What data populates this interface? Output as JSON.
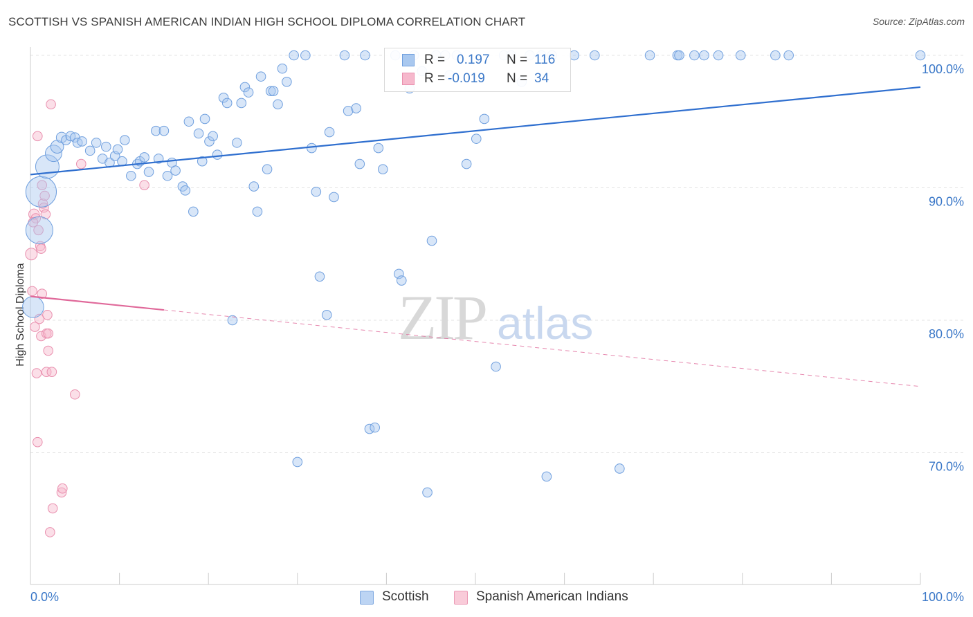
{
  "header": {
    "title": "SCOTTISH VS SPANISH AMERICAN INDIAN HIGH SCHOOL DIPLOMA CORRELATION CHART",
    "source": "Source: ZipAtlas.com"
  },
  "watermark": {
    "zip": "ZIP",
    "atlas": "atlas"
  },
  "legend": {
    "rows": [
      {
        "r_label": "R =",
        "r_value": "0.197",
        "n_label": "N =",
        "n_value": "116"
      },
      {
        "r_label": "R =",
        "r_value": "-0.019",
        "n_label": "N =",
        "n_value": "34"
      }
    ]
  },
  "bottom_legend": {
    "series1": "Scottish",
    "series2": "Spanish American Indians"
  },
  "colors": {
    "scottish_fill": "#a9c8ef",
    "scottish_stroke": "#6f9fde",
    "scottish_line": "#2f6fcf",
    "spanish_fill": "#f6b8cc",
    "spanish_stroke": "#e98fae",
    "spanish_line": "#e0699a",
    "tick_label": "#3b78c8",
    "grid": "#e3e3e3"
  },
  "chart_data": {
    "type": "scatter",
    "title": "SCOTTISH VS SPANISH AMERICAN INDIAN HIGH SCHOOL DIPLOMA CORRELATION CHART",
    "xlabel": "",
    "ylabel": "High School Diploma",
    "xlim": [
      0,
      100
    ],
    "ylim": [
      62,
      101
    ],
    "x_tick_labels": [
      "0.0%",
      "100.0%"
    ],
    "y_ticks": [
      70,
      80,
      90,
      100
    ],
    "y_tick_labels": [
      "70.0%",
      "80.0%",
      "90.0%",
      "100.0%"
    ],
    "grid": true,
    "legend_placement": "top-center",
    "series": [
      {
        "name": "Scottish",
        "R": 0.197,
        "N": 116,
        "trend": {
          "x": [
            0,
            100
          ],
          "y": [
            91.0,
            97.6
          ],
          "dashed": false
        },
        "points": [
          [
            0.3,
            81.0,
            1.8
          ],
          [
            1.0,
            86.8,
            2.3
          ],
          [
            1.2,
            89.7,
            2.6
          ],
          [
            1.9,
            91.6,
            2.0
          ],
          [
            2.6,
            92.6,
            1.4
          ],
          [
            3.0,
            93.1,
            1.1
          ],
          [
            3.5,
            93.8,
            0.9
          ],
          [
            4.0,
            93.6,
            0.8
          ],
          [
            4.5,
            93.9,
            0.8
          ],
          [
            5.0,
            93.8,
            0.8
          ],
          [
            5.3,
            93.4,
            0.8
          ],
          [
            5.8,
            93.5,
            0.8
          ],
          [
            6.7,
            92.8,
            0.8
          ],
          [
            7.4,
            93.4,
            0.8
          ],
          [
            8.1,
            92.2,
            0.8
          ],
          [
            8.5,
            93.1,
            0.8
          ],
          [
            8.9,
            91.9,
            0.8
          ],
          [
            9.5,
            92.4,
            0.8
          ],
          [
            9.8,
            92.9,
            0.8
          ],
          [
            10.3,
            92.0,
            0.8
          ],
          [
            10.6,
            93.6,
            0.8
          ],
          [
            11.3,
            90.9,
            0.8
          ],
          [
            12.0,
            91.8,
            0.8
          ],
          [
            12.3,
            92.0,
            0.8
          ],
          [
            12.8,
            92.3,
            0.8
          ],
          [
            13.3,
            91.2,
            0.8
          ],
          [
            14.1,
            94.3,
            0.8
          ],
          [
            14.4,
            92.2,
            0.8
          ],
          [
            15.0,
            94.3,
            0.8
          ],
          [
            15.4,
            90.9,
            0.8
          ],
          [
            15.9,
            91.9,
            0.8
          ],
          [
            16.3,
            91.3,
            0.8
          ],
          [
            17.1,
            90.1,
            0.8
          ],
          [
            17.4,
            89.8,
            0.8
          ],
          [
            17.8,
            95.0,
            0.8
          ],
          [
            18.3,
            88.2,
            0.8
          ],
          [
            18.9,
            94.1,
            0.8
          ],
          [
            19.3,
            92.0,
            0.8
          ],
          [
            19.6,
            95.2,
            0.8
          ],
          [
            20.1,
            93.5,
            0.8
          ],
          [
            20.5,
            93.9,
            0.8
          ],
          [
            21.0,
            92.5,
            0.8
          ],
          [
            21.7,
            96.8,
            0.8
          ],
          [
            22.1,
            96.4,
            0.8
          ],
          [
            22.7,
            80.0,
            0.8
          ],
          [
            23.2,
            93.4,
            0.8
          ],
          [
            23.7,
            96.4,
            0.8
          ],
          [
            24.1,
            97.6,
            0.8
          ],
          [
            24.5,
            97.2,
            0.8
          ],
          [
            25.1,
            90.1,
            0.8
          ],
          [
            25.5,
            88.2,
            0.8
          ],
          [
            25.9,
            98.4,
            0.8
          ],
          [
            26.6,
            91.4,
            0.8
          ],
          [
            27.0,
            97.3,
            0.8
          ],
          [
            27.3,
            97.3,
            0.8
          ],
          [
            27.8,
            96.3,
            0.8
          ],
          [
            28.3,
            99.0,
            0.8
          ],
          [
            28.8,
            98.0,
            0.8
          ],
          [
            29.6,
            100.0,
            0.8
          ],
          [
            30.0,
            69.3,
            0.8
          ],
          [
            30.9,
            100.0,
            0.8
          ],
          [
            31.6,
            93.0,
            0.8
          ],
          [
            32.1,
            89.7,
            0.8
          ],
          [
            32.5,
            83.3,
            0.8
          ],
          [
            33.3,
            80.4,
            0.8
          ],
          [
            33.6,
            94.2,
            0.8
          ],
          [
            34.1,
            89.3,
            0.8
          ],
          [
            35.3,
            100.0,
            0.8
          ],
          [
            35.7,
            95.8,
            0.8
          ],
          [
            36.6,
            96.0,
            0.8
          ],
          [
            37.0,
            91.8,
            0.8
          ],
          [
            37.6,
            100.0,
            0.8
          ],
          [
            38.1,
            71.8,
            0.8
          ],
          [
            38.7,
            71.9,
            0.8
          ],
          [
            39.1,
            93.0,
            0.8
          ],
          [
            39.6,
            91.4,
            0.8
          ],
          [
            41.0,
            100.0,
            0.8
          ],
          [
            41.4,
            83.5,
            0.8
          ],
          [
            41.7,
            83.0,
            0.8
          ],
          [
            42.6,
            97.5,
            0.8
          ],
          [
            43.1,
            100.0,
            0.8
          ],
          [
            44.0,
            98.8,
            0.8
          ],
          [
            44.6,
            67.0,
            0.8
          ],
          [
            45.1,
            86.0,
            0.8
          ],
          [
            45.6,
            100.0,
            0.8
          ],
          [
            46.6,
            100.0,
            0.8
          ],
          [
            47.1,
            98.5,
            0.8
          ],
          [
            47.9,
            100.0,
            0.8
          ],
          [
            49.0,
            91.8,
            0.8
          ],
          [
            50.1,
            93.7,
            0.8
          ],
          [
            51.0,
            95.2,
            0.8
          ],
          [
            52.3,
            76.5,
            0.8
          ],
          [
            53.2,
            100.0,
            0.8
          ],
          [
            54.0,
            100.0,
            0.8
          ],
          [
            55.2,
            98.0,
            0.8
          ],
          [
            56.1,
            100.0,
            0.8
          ],
          [
            57.4,
            100.0,
            0.8
          ],
          [
            58.0,
            68.2,
            0.8
          ],
          [
            58.6,
            100.0,
            0.8
          ],
          [
            61.1,
            100.0,
            0.8
          ],
          [
            63.4,
            100.0,
            0.8
          ],
          [
            66.2,
            68.8,
            0.8
          ],
          [
            69.6,
            100.0,
            0.8
          ],
          [
            72.7,
            100.0,
            0.8
          ],
          [
            72.9,
            100.0,
            0.8
          ],
          [
            74.6,
            100.0,
            0.8
          ],
          [
            75.7,
            100.0,
            0.8
          ],
          [
            77.3,
            100.0,
            0.8
          ],
          [
            79.8,
            100.0,
            0.8
          ],
          [
            83.7,
            100.0,
            0.8
          ],
          [
            85.2,
            100.0,
            0.8
          ],
          [
            100.0,
            100.0,
            0.8
          ]
        ]
      },
      {
        "name": "Spanish American Indians",
        "R": -0.019,
        "N": 34,
        "trend": {
          "x": [
            0,
            100
          ],
          "y": [
            81.8,
            75.0
          ],
          "solid_until": 15
        },
        "points": [
          [
            0.1,
            85.0,
            1.0
          ],
          [
            0.2,
            82.2,
            0.8
          ],
          [
            0.4,
            88.0,
            0.9
          ],
          [
            0.6,
            87.7,
            0.8
          ],
          [
            0.5,
            79.5,
            0.8
          ],
          [
            0.7,
            76.0,
            0.8
          ],
          [
            0.8,
            70.8,
            0.8
          ],
          [
            0.8,
            93.9,
            0.8
          ],
          [
            0.9,
            86.8,
            0.8
          ],
          [
            1.0,
            80.1,
            0.8
          ],
          [
            1.1,
            85.6,
            0.8
          ],
          [
            1.2,
            85.4,
            0.8
          ],
          [
            1.3,
            90.2,
            0.8
          ],
          [
            1.4,
            88.8,
            0.8
          ],
          [
            1.5,
            88.5,
            0.8
          ],
          [
            1.6,
            89.4,
            0.8
          ],
          [
            1.7,
            88.0,
            0.8
          ],
          [
            1.2,
            78.8,
            0.8
          ],
          [
            1.8,
            79.0,
            0.8
          ],
          [
            1.9,
            80.4,
            0.8
          ],
          [
            1.8,
            76.1,
            0.8
          ],
          [
            2.0,
            77.7,
            0.8
          ],
          [
            2.0,
            79.0,
            0.8
          ],
          [
            2.2,
            64.0,
            0.8
          ],
          [
            2.3,
            96.3,
            0.8
          ],
          [
            2.4,
            76.1,
            0.8
          ],
          [
            2.5,
            65.8,
            0.8
          ],
          [
            3.5,
            67.0,
            0.8
          ],
          [
            3.6,
            67.3,
            0.8
          ],
          [
            5.0,
            74.4,
            0.8
          ],
          [
            5.7,
            91.8,
            0.8
          ],
          [
            12.8,
            90.2,
            0.8
          ],
          [
            1.3,
            82.0,
            0.8
          ],
          [
            0.3,
            87.4,
            0.8
          ]
        ]
      }
    ]
  }
}
